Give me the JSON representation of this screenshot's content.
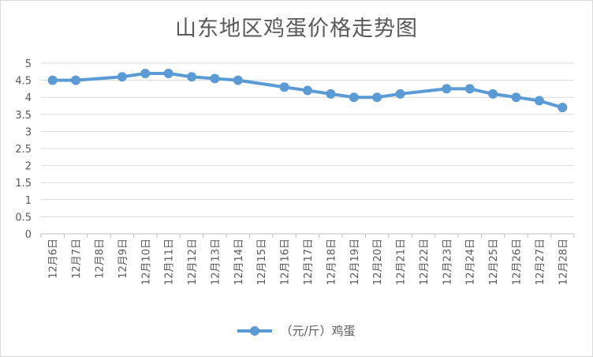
{
  "chart_data": {
    "type": "line",
    "title": "山东地区鸡蛋价格走势图",
    "xlabel": "",
    "ylabel": "",
    "ylim": [
      0,
      5
    ],
    "yticks": [
      "0",
      "0.5",
      "1",
      "1.5",
      "2",
      "2.5",
      "3",
      "3.5",
      "4",
      "4.5",
      "5"
    ],
    "categories": [
      "12月6日",
      "12月7日",
      "12月8日",
      "12月9日",
      "12月10日",
      "12月11日",
      "12月12日",
      "12月13日",
      "12月14日",
      "12月15日",
      "12月16日",
      "12月17日",
      "12月18日",
      "12月19日",
      "12月20日",
      "12月21日",
      "12月22日",
      "12月23日",
      "12月24日",
      "12月25日",
      "12月26日",
      "12月27日",
      "12月28日"
    ],
    "series": [
      {
        "name": "（元/斤）鸡蛋",
        "color": "#5b9bd5",
        "values": [
          4.5,
          4.5,
          null,
          4.6,
          4.7,
          4.7,
          4.6,
          4.55,
          4.5,
          null,
          4.3,
          4.2,
          4.1,
          4.0,
          4.0,
          4.1,
          null,
          4.25,
          4.25,
          4.1,
          4.0,
          3.9,
          3.7
        ]
      }
    ],
    "legend": "bottom",
    "grid": true
  }
}
